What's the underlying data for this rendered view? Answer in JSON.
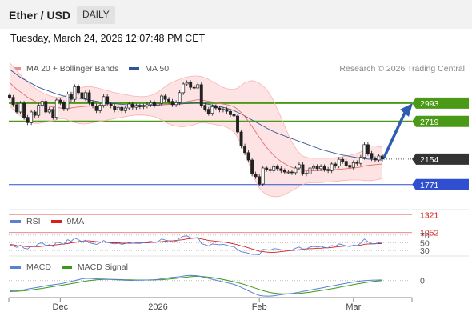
{
  "header": {
    "title": "Ether / USD",
    "period": "DAILY"
  },
  "datetime": "Tuesday, March 24, 2026 12:07:48 PM CET",
  "credit": "Research © 2026 Trading Central",
  "legends": {
    "main": [
      {
        "label": "MA 20 + Bollinger Bands",
        "color": "#f28b8b"
      },
      {
        "label": "MA 50",
        "color": "#2f5596"
      }
    ],
    "rsi": [
      {
        "label": "RSI",
        "color": "#5b7fd6"
      },
      {
        "label": "9MA",
        "color": "#d62020"
      }
    ],
    "macd": [
      {
        "label": "MACD",
        "color": "#5b7fd6"
      },
      {
        "label": "MACD Signal",
        "color": "#3a9a1a"
      }
    ]
  },
  "chart_data": {
    "type": "candlestick",
    "y_range": [
      700,
      3700
    ],
    "x_ticks": [
      "Dec",
      "2026",
      "Feb",
      "Mar"
    ],
    "levels": [
      {
        "value": 2993,
        "label": "2993",
        "kind": "resistance"
      },
      {
        "value": 2719,
        "label": "2719",
        "kind": "resistance"
      },
      {
        "value": 2154,
        "label": "2154",
        "kind": "last"
      },
      {
        "value": 1771,
        "label": "1771",
        "kind": "support"
      },
      {
        "value": 1321,
        "label": "1321",
        "kind": "support-secondary"
      },
      {
        "value": 1052,
        "label": "1052",
        "kind": "support-secondary"
      }
    ],
    "close": [
      3080,
      2970,
      2860,
      2990,
      2780,
      2700,
      2860,
      2810,
      2960,
      3020,
      2860,
      2900,
      2780,
      3040,
      3000,
      2910,
      3130,
      3050,
      3240,
      3150,
      3060,
      3150,
      3000,
      2950,
      2880,
      2960,
      3090,
      2980,
      2950,
      2890,
      2930,
      2880,
      2920,
      2980,
      2930,
      2950,
      2940,
      2950,
      2970,
      3000,
      2960,
      2990,
      3100,
      3050,
      3020,
      2970,
      3000,
      3150,
      3280,
      3300,
      3230,
      3220,
      3270,
      2960,
      2900,
      2840,
      2940,
      2920,
      2890,
      2900,
      2870,
      2820,
      2800,
      2560,
      2350,
      2250,
      2140,
      1930,
      1890,
      1780,
      2020,
      2000,
      1980,
      2040,
      2010,
      1980,
      1960,
      1960,
      1950,
      2020,
      2070,
      1940,
      1930,
      2020,
      2040,
      2010,
      2040,
      2000,
      1980,
      2080,
      2050,
      2150,
      2120,
      2060,
      2030,
      2100,
      2090,
      2180,
      2370,
      2240,
      2160,
      2140,
      2200,
      2154
    ],
    "ma50": [
      3500,
      3460,
      3420,
      3380,
      3350,
      3320,
      3290,
      3260,
      3230,
      3210,
      3190,
      3170,
      3150,
      3130,
      3115,
      3100,
      3090,
      3080,
      3075,
      3070,
      3060,
      3050,
      3040,
      3030,
      3020,
      3010,
      3000,
      2995,
      2990,
      2985,
      2980,
      2975,
      2970,
      2968,
      2966,
      2964,
      2962,
      2960,
      2962,
      2964,
      2966,
      2968,
      2970,
      2972,
      2974,
      2976,
      2978,
      2980,
      2984,
      2988,
      2992,
      2996,
      3000,
      2995,
      2985,
      2975,
      2965,
      2955,
      2945,
      2930,
      2915,
      2900,
      2880,
      2855,
      2830,
      2800,
      2770,
      2740,
      2710,
      2680,
      2650,
      2620,
      2590,
      2565,
      2540,
      2520,
      2500,
      2480,
      2460,
      2440,
      2420,
      2400,
      2380,
      2360,
      2340,
      2320,
      2300,
      2285,
      2270,
      2255,
      2240,
      2228,
      2215,
      2205,
      2195,
      2185,
      2175,
      2168,
      2160,
      2155,
      2150,
      2146,
      2142,
      2138
    ],
    "ma20": [
      3300,
      3250,
      3200,
      3160,
      3120,
      3080,
      3050,
      3020,
      2995,
      2975,
      2960,
      2945,
      2935,
      2928,
      2920,
      2915,
      2915,
      2920,
      2928,
      2935,
      2940,
      2945,
      2948,
      2950,
      2950,
      2950,
      2950,
      2950,
      2950,
      2950,
      2950,
      2950,
      2950,
      2950,
      2950,
      2950,
      2950,
      2950,
      2950,
      2953,
      2956,
      2960,
      2965,
      2970,
      2975,
      2980,
      2985,
      2995,
      3005,
      3015,
      3025,
      3035,
      3045,
      3040,
      3030,
      3020,
      3010,
      3000,
      2990,
      2980,
      2970,
      2955,
      2940,
      2900,
      2850,
      2790,
      2720,
      2640,
      2560,
      2480,
      2400,
      2330,
      2270,
      2210,
      2160,
      2120,
      2085,
      2055,
      2030,
      2010,
      1995,
      1985,
      1980,
      1978,
      1978,
      1980,
      1982,
      1985,
      1988,
      1992,
      1996,
      2000,
      2005,
      2010,
      2015,
      2020,
      2025,
      2035,
      2050,
      2060,
      2065,
      2070,
      2075,
      2080
    ],
    "bb_upper": [
      3600,
      3540,
      3480,
      3420,
      3360,
      3310,
      3260,
      3220,
      3180,
      3150,
      3125,
      3105,
      3090,
      3080,
      3080,
      3090,
      3110,
      3140,
      3180,
      3210,
      3230,
      3240,
      3240,
      3235,
      3225,
      3210,
      3195,
      3180,
      3165,
      3150,
      3140,
      3130,
      3120,
      3110,
      3100,
      3095,
      3090,
      3090,
      3095,
      3110,
      3130,
      3160,
      3200,
      3240,
      3280,
      3310,
      3330,
      3350,
      3370,
      3385,
      3395,
      3400,
      3400,
      3390,
      3370,
      3350,
      3320,
      3290,
      3260,
      3230,
      3210,
      3200,
      3200,
      3220,
      3260,
      3300,
      3320,
      3330,
      3320,
      3290,
      3250,
      3200,
      3120,
      3020,
      2900,
      2780,
      2650,
      2520,
      2410,
      2320,
      2250,
      2200,
      2180,
      2170,
      2165,
      2165,
      2165,
      2165,
      2165,
      2170,
      2175,
      2180,
      2190,
      2200,
      2210,
      2225,
      2240,
      2260,
      2310,
      2340,
      2350,
      2350,
      2340,
      2330
    ],
    "bb_lower": [
      2950,
      2900,
      2850,
      2800,
      2760,
      2720,
      2700,
      2690,
      2690,
      2700,
      2710,
      2720,
      2730,
      2745,
      2760,
      2760,
      2740,
      2720,
      2700,
      2690,
      2680,
      2680,
      2690,
      2700,
      2710,
      2720,
      2730,
      2740,
      2750,
      2760,
      2770,
      2780,
      2790,
      2800,
      2810,
      2815,
      2815,
      2815,
      2810,
      2800,
      2790,
      2770,
      2740,
      2710,
      2680,
      2660,
      2650,
      2640,
      2640,
      2645,
      2655,
      2670,
      2690,
      2700,
      2700,
      2690,
      2680,
      2670,
      2660,
      2650,
      2630,
      2600,
      2560,
      2480,
      2380,
      2250,
      2100,
      1950,
      1820,
      1720,
      1660,
      1620,
      1600,
      1590,
      1590,
      1600,
      1620,
      1650,
      1680,
      1710,
      1740,
      1770,
      1790,
      1800,
      1800,
      1800,
      1800,
      1805,
      1810,
      1815,
      1820,
      1825,
      1830,
      1835,
      1840,
      1840,
      1840,
      1840,
      1830,
      1830,
      1830,
      1840,
      1850,
      1860
    ],
    "forecast": {
      "from": 2154,
      "to": 2993
    },
    "rsi": {
      "levels": [
        70,
        50,
        30
      ],
      "values": [
        45,
        42,
        38,
        44,
        36,
        34,
        42,
        40,
        48,
        50,
        43,
        45,
        40,
        52,
        50,
        46,
        58,
        54,
        62,
        58,
        53,
        57,
        50,
        48,
        46,
        50,
        56,
        51,
        49,
        47,
        49,
        46,
        48,
        51,
        49,
        50,
        50,
        50,
        52,
        54,
        51,
        53,
        60,
        57,
        55,
        52,
        54,
        62,
        67,
        68,
        63,
        62,
        64,
        48,
        45,
        42,
        47,
        46,
        45,
        46,
        44,
        41,
        40,
        32,
        27,
        25,
        23,
        20,
        20,
        19,
        33,
        32,
        31,
        35,
        34,
        32,
        31,
        31,
        31,
        36,
        39,
        34,
        34,
        39,
        41,
        39,
        41,
        38,
        37,
        43,
        41,
        47,
        45,
        42,
        40,
        44,
        43,
        49,
        60,
        53,
        48,
        47,
        50,
        49
      ],
      "ma9": [
        46,
        45,
        43,
        42,
        41,
        40,
        40,
        40,
        40,
        41,
        42,
        43,
        44,
        45,
        46,
        47,
        48,
        50,
        51,
        53,
        54,
        55,
        55,
        54,
        53,
        52,
        52,
        51,
        50,
        50,
        50,
        49,
        49,
        49,
        49,
        49,
        49,
        50,
        50,
        51,
        51,
        52,
        53,
        54,
        55,
        55,
        56,
        57,
        58,
        60,
        61,
        62,
        62,
        60,
        58,
        56,
        55,
        54,
        53,
        52,
        51,
        49,
        47,
        45,
        42,
        40,
        37,
        34,
        31,
        28,
        27,
        26,
        25,
        25,
        26,
        27,
        28,
        29,
        30,
        31,
        32,
        33,
        34,
        35,
        35,
        36,
        36,
        37,
        37,
        38,
        39,
        40,
        41,
        42,
        42,
        43,
        43,
        44,
        46,
        47,
        47,
        48,
        48,
        48
      ]
    },
    "macd": {
      "zero": 0,
      "macd": [
        -120,
        -118,
        -116,
        -112,
        -108,
        -100,
        -92,
        -85,
        -78,
        -70,
        -62,
        -55,
        -50,
        -44,
        -38,
        -30,
        -20,
        -10,
        0,
        10,
        20,
        25,
        25,
        22,
        20,
        18,
        18,
        16,
        14,
        10,
        8,
        5,
        3,
        2,
        2,
        3,
        4,
        5,
        6,
        8,
        10,
        14,
        20,
        26,
        32,
        36,
        40,
        45,
        52,
        58,
        60,
        58,
        55,
        45,
        35,
        25,
        15,
        5,
        -5,
        -15,
        -25,
        -35,
        -45,
        -60,
        -80,
        -100,
        -120,
        -140,
        -160,
        -175,
        -180,
        -182,
        -182,
        -178,
        -172,
        -166,
        -160,
        -155,
        -150,
        -144,
        -136,
        -128,
        -120,
        -112,
        -104,
        -96,
        -88,
        -80,
        -72,
        -64,
        -56,
        -48,
        -40,
        -32,
        -24,
        -18,
        -12,
        -6,
        0,
        2,
        4,
        5,
        6,
        7
      ],
      "signal": [
        -130,
        -128,
        -126,
        -123,
        -120,
        -115,
        -110,
        -104,
        -98,
        -92,
        -85,
        -78,
        -71,
        -64,
        -58,
        -51,
        -44,
        -37,
        -30,
        -22,
        -14,
        -7,
        0,
        4,
        8,
        11,
        13,
        14,
        14,
        13,
        12,
        11,
        9,
        8,
        7,
        6,
        6,
        6,
        6,
        6,
        7,
        8,
        10,
        13,
        17,
        21,
        25,
        30,
        35,
        40,
        45,
        48,
        50,
        48,
        44,
        40,
        34,
        27,
        20,
        12,
        3,
        -6,
        -15,
        -25,
        -36,
        -48,
        -62,
        -76,
        -90,
        -104,
        -118,
        -130,
        -140,
        -147,
        -152,
        -155,
        -156,
        -156,
        -155,
        -153,
        -150,
        -146,
        -141,
        -136,
        -130,
        -124,
        -117,
        -110,
        -103,
        -96,
        -88,
        -80,
        -72,
        -64,
        -56,
        -48,
        -40,
        -33,
        -26,
        -19,
        -13,
        -8,
        -4,
        -1
      ],
      "range": [
        -200,
        100
      ]
    }
  }
}
